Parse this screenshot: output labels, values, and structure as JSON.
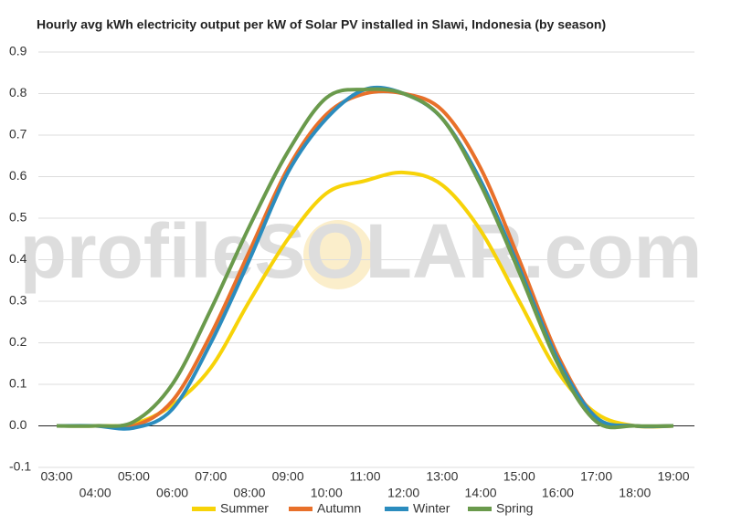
{
  "chart_data": {
    "type": "line",
    "title": "Hourly avg kWh electricity output per kW of Solar PV installed in Slawi, Indonesia (by season)",
    "watermark": "profileSOLAR.com",
    "categories": [
      "03:00",
      "04:00",
      "05:00",
      "06:00",
      "07:00",
      "08:00",
      "09:00",
      "10:00",
      "11:00",
      "12:00",
      "13:00",
      "14:00",
      "15:00",
      "16:00",
      "17:00",
      "18:00",
      "19:00"
    ],
    "series": [
      {
        "name": "Summer",
        "color": "#f7d308",
        "values": [
          0,
          0,
          0.005,
          0.05,
          0.14,
          0.3,
          0.45,
          0.56,
          0.59,
          0.61,
          0.58,
          0.47,
          0.3,
          0.13,
          0.03,
          0,
          0
        ]
      },
      {
        "name": "Autumn",
        "color": "#e8702a",
        "values": [
          0,
          0,
          0,
          0.06,
          0.22,
          0.42,
          0.62,
          0.75,
          0.8,
          0.8,
          0.76,
          0.62,
          0.4,
          0.17,
          0.02,
          0,
          0
        ]
      },
      {
        "name": "Winter",
        "color": "#2b8cbe",
        "values": [
          0,
          0,
          -0.005,
          0.04,
          0.2,
          0.4,
          0.61,
          0.74,
          0.81,
          0.8,
          0.74,
          0.59,
          0.38,
          0.16,
          0.02,
          0,
          0
        ]
      },
      {
        "name": "Spring",
        "color": "#6a9a4c",
        "values": [
          0,
          0,
          0.01,
          0.1,
          0.28,
          0.48,
          0.66,
          0.79,
          0.81,
          0.8,
          0.74,
          0.58,
          0.37,
          0.15,
          0.01,
          0,
          0
        ]
      }
    ],
    "ylim": [
      -0.1,
      0.9
    ],
    "yticks": [
      -0.1,
      {
        "value": 0,
        "label": "0.0"
      },
      0.1,
      0.2,
      0.3,
      0.4,
      0.5,
      0.6,
      0.7,
      0.8,
      0.9
    ],
    "grid": true
  }
}
